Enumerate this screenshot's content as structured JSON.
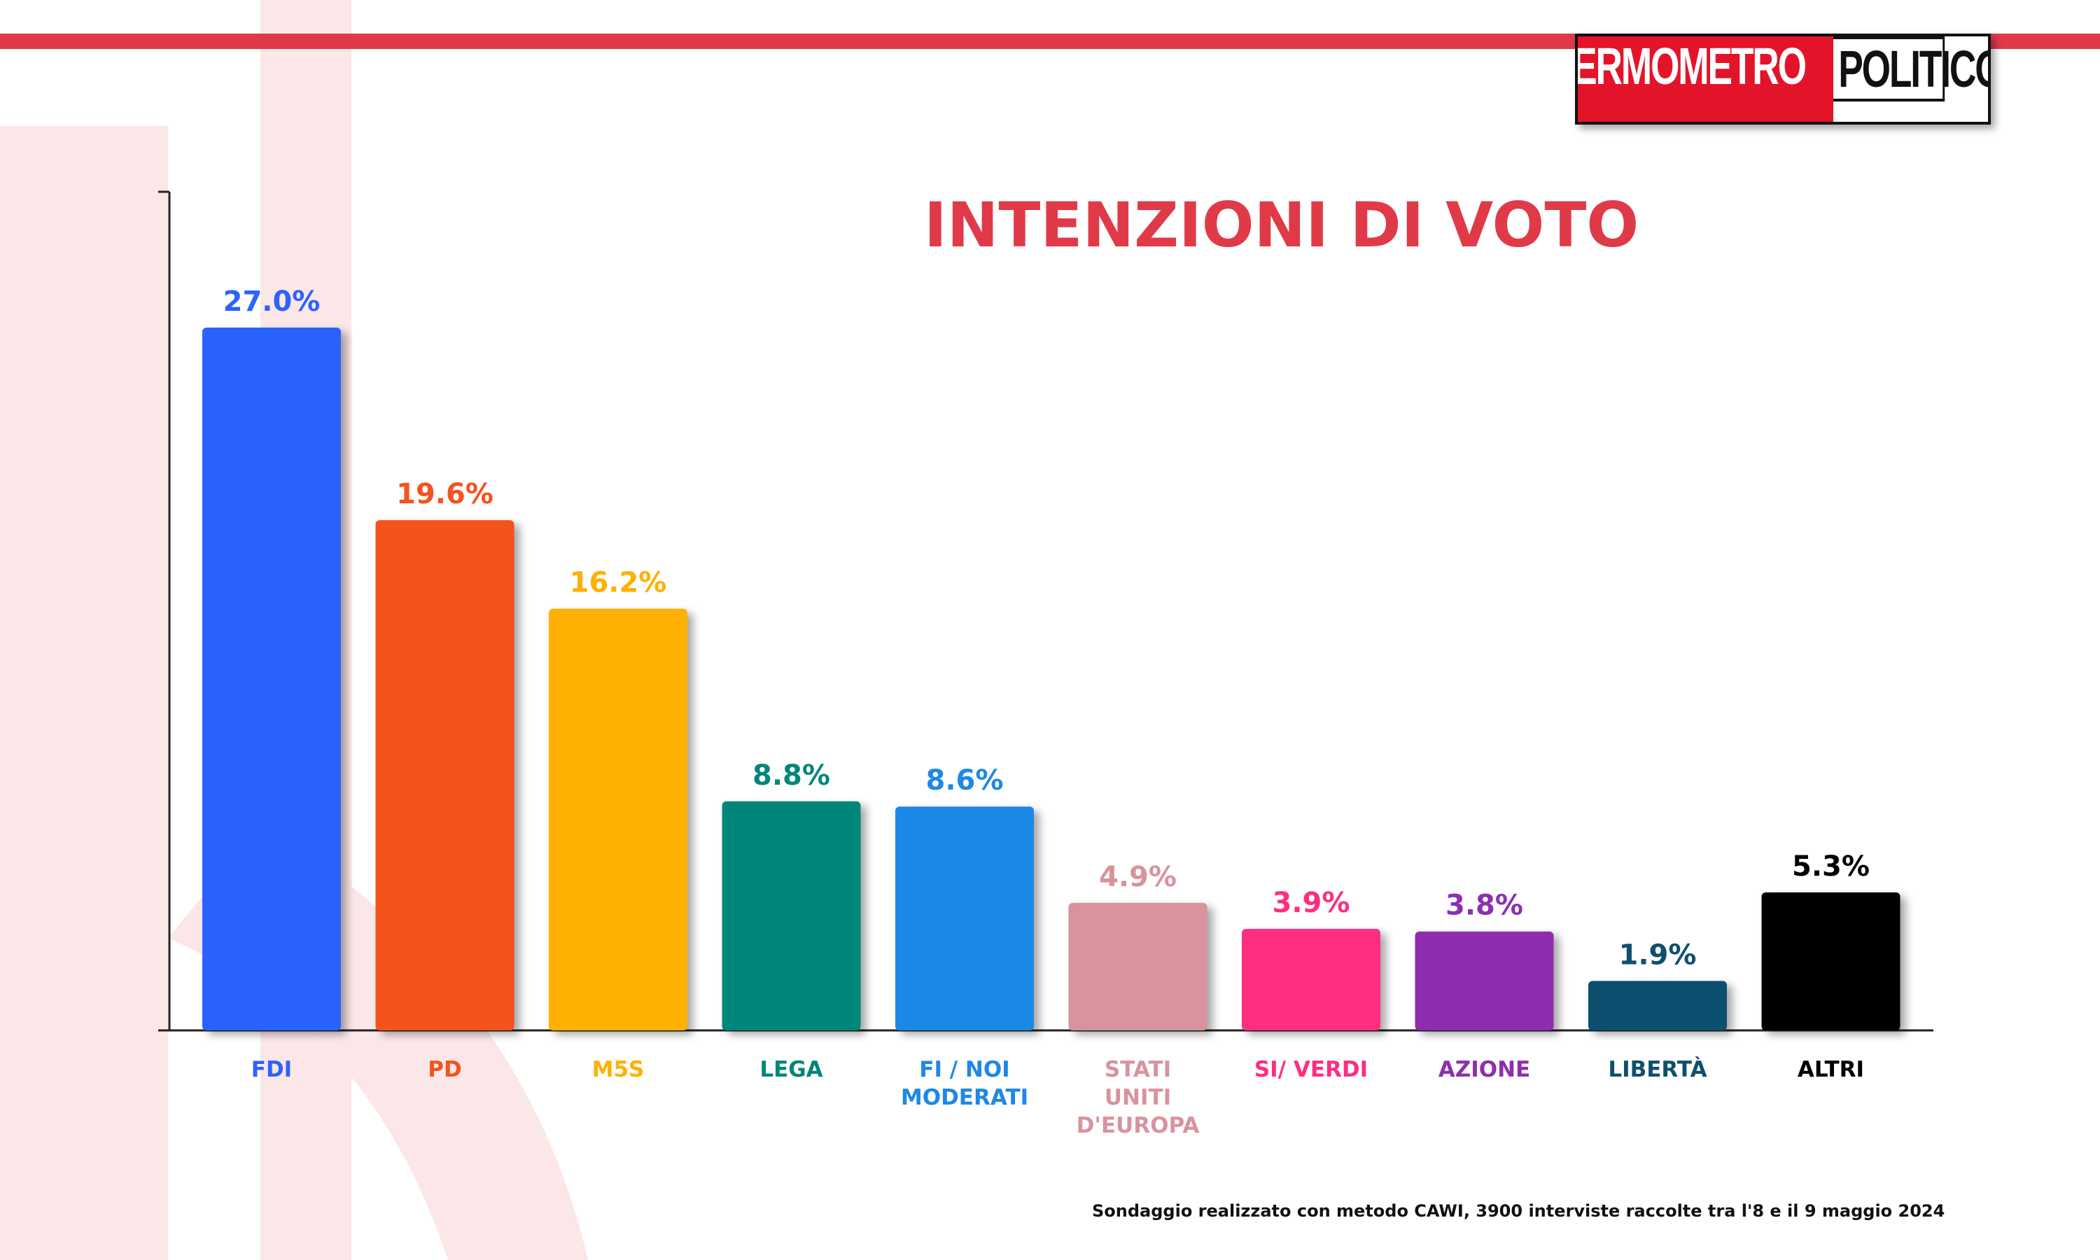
{
  "logo": {
    "part_a": "TERMOMETRO",
    "part_b": "POLITICO"
  },
  "footnote": "Sondaggio realizzato con metodo CAWI, 3900 interviste raccolte tra l'8 e il 9 maggio 2024",
  "colors": {
    "accent": "#e03a49",
    "watermark": "#fbe7e8"
  },
  "chart_data": {
    "type": "bar",
    "title": "INTENZIONI DI VOTO",
    "xlabel": "",
    "ylabel": "",
    "ylim": [
      0,
      30
    ],
    "grid": false,
    "legend": "none",
    "categories": [
      "FDI",
      "PD",
      "M5S",
      "LEGA",
      "FI / NOI MODERATI",
      "STATI UNITI D'EUROPA",
      "SI/ VERDI",
      "AZIONE",
      "LIBERTÀ",
      "ALTRI"
    ],
    "category_lines": [
      [
        "FDI"
      ],
      [
        "PD"
      ],
      [
        "M5S"
      ],
      [
        "LEGA"
      ],
      [
        "FI / NOI",
        "MODERATI"
      ],
      [
        "STATI",
        "UNITI",
        "D'EUROPA"
      ],
      [
        "SI/ VERDI"
      ],
      [
        "AZIONE"
      ],
      [
        "LIBERTÀ"
      ],
      [
        "ALTRI"
      ]
    ],
    "values": [
      27.0,
      19.6,
      16.2,
      8.8,
      8.6,
      4.9,
      3.9,
      3.8,
      1.9,
      5.3
    ],
    "value_labels": [
      "27.0%",
      "19.6%",
      "16.2%",
      "8.8%",
      "8.6%",
      "4.9%",
      "3.9%",
      "3.8%",
      "1.9%",
      "5.3%"
    ],
    "bar_colors": [
      "#2c62ff",
      "#f4521e",
      "#ffb000",
      "#00877a",
      "#1e88e5",
      "#d9939c",
      "#ff2d82",
      "#8e2fae",
      "#0f4f6e",
      "#000000"
    ],
    "label_colors": [
      "#2c62ff",
      "#f4521e",
      "#ffb000",
      "#00877a",
      "#1e88e5",
      "#d9939c",
      "#ff2d82",
      "#8e2fae",
      "#0f4f6e",
      "#000000"
    ]
  }
}
